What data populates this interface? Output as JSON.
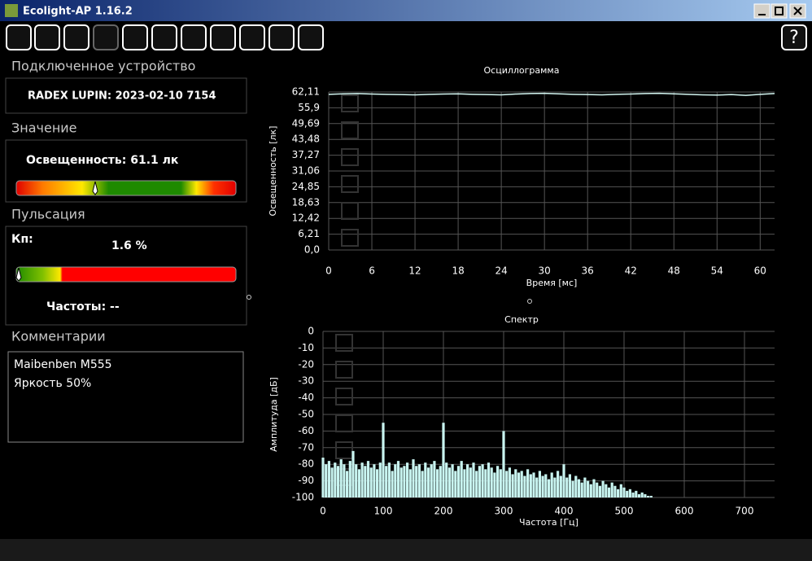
{
  "window": {
    "title": "Ecolight-AP 1.16.2"
  },
  "panel": {
    "device_header": "Подключенное устройство",
    "device": "RADEX LUPIN:  2023-02-10 7154",
    "value_header": "Значение",
    "value_text": "Освещенность:  61.1 лк",
    "pulse_header": "Пульсация",
    "kp_label": "Кп:",
    "kp_value": "1.6 %",
    "freq_text": "Частоты:  --",
    "comments_header": "Комментарии",
    "comments": [
      "Maibenben M555",
      "Яркость 50%"
    ]
  },
  "chart_data": [
    {
      "type": "line",
      "title": "Осциллограмма",
      "x_label": "Время [мс]",
      "y_label": "Освещенность [лк]",
      "x": [
        0,
        2,
        4,
        6,
        8,
        10,
        12,
        14,
        16,
        18,
        20,
        22,
        24,
        26,
        28,
        30,
        32,
        34,
        36,
        38,
        40,
        42,
        44,
        46,
        48,
        50,
        52,
        54,
        56,
        58,
        60,
        62
      ],
      "series": [
        {
          "color": "#d4f7f2",
          "values": [
            61.2,
            61.4,
            61.5,
            61.3,
            61.2,
            61.1,
            61.0,
            61.2,
            61.3,
            61.4,
            61.2,
            61.1,
            61.0,
            61.3,
            61.5,
            61.6,
            61.4,
            61.2,
            61.1,
            61.0,
            61.2,
            61.3,
            61.5,
            61.6,
            61.4,
            61.2,
            61.0,
            60.9,
            61.1,
            60.8,
            61.2,
            61.5
          ]
        }
      ],
      "xlim": [
        0,
        62
      ],
      "xticks": [
        0,
        6,
        12,
        18,
        24,
        30,
        36,
        42,
        48,
        54,
        60
      ],
      "ylim": [
        0,
        62.11
      ],
      "yticks": [
        {
          "value": 0,
          "label": "0,0"
        },
        {
          "value": 6.21,
          "label": "6,21"
        },
        {
          "value": 12.42,
          "label": "12,42"
        },
        {
          "value": 18.63,
          "label": "18,63"
        },
        {
          "value": 24.85,
          "label": "24,85"
        },
        {
          "value": 31.06,
          "label": "31,06"
        },
        {
          "value": 37.27,
          "label": "37,27"
        },
        {
          "value": 43.48,
          "label": "43,48"
        },
        {
          "value": 49.69,
          "label": "49,69"
        },
        {
          "value": 55.9,
          "label": "55,9"
        },
        {
          "value": 62.11,
          "label": "62,11"
        }
      ],
      "grid": true
    },
    {
      "type": "bar",
      "title": "Спектр",
      "x_label": "Частота [Гц]",
      "y_label": "Амплитуда [дБ]",
      "x": [
        0,
        5,
        10,
        15,
        20,
        25,
        30,
        35,
        40,
        45,
        50,
        55,
        60,
        65,
        70,
        75,
        80,
        85,
        90,
        95,
        100,
        105,
        110,
        115,
        120,
        125,
        130,
        135,
        140,
        145,
        150,
        155,
        160,
        165,
        170,
        175,
        180,
        185,
        190,
        195,
        200,
        205,
        210,
        215,
        220,
        225,
        230,
        235,
        240,
        245,
        250,
        255,
        260,
        265,
        270,
        275,
        280,
        285,
        290,
        295,
        300,
        305,
        310,
        315,
        320,
        325,
        330,
        335,
        340,
        345,
        350,
        355,
        360,
        365,
        370,
        375,
        380,
        385,
        390,
        395,
        400,
        405,
        410,
        415,
        420,
        425,
        430,
        435,
        440,
        445,
        450,
        455,
        460,
        465,
        470,
        475,
        480,
        485,
        490,
        495,
        500,
        505,
        510,
        515,
        520,
        525,
        530,
        535,
        540,
        545
      ],
      "series": [
        {
          "color": "#c8f4f0",
          "values": [
            -76,
            -80,
            -78,
            -82,
            -79,
            -81,
            -77,
            -80,
            -84,
            -78,
            -72,
            -80,
            -83,
            -79,
            -81,
            -78,
            -82,
            -80,
            -83,
            -79,
            -55,
            -81,
            -79,
            -84,
            -80,
            -78,
            -82,
            -81,
            -79,
            -83,
            -77,
            -81,
            -80,
            -84,
            -79,
            -82,
            -80,
            -78,
            -83,
            -81,
            -55,
            -79,
            -82,
            -80,
            -84,
            -81,
            -78,
            -83,
            -80,
            -82,
            -79,
            -84,
            -81,
            -80,
            -83,
            -79,
            -82,
            -85,
            -81,
            -83,
            -60,
            -84,
            -82,
            -86,
            -83,
            -85,
            -84,
            -87,
            -83,
            -86,
            -85,
            -88,
            -84,
            -87,
            -86,
            -89,
            -85,
            -88,
            -84,
            -87,
            -80,
            -88,
            -86,
            -90,
            -87,
            -89,
            -91,
            -88,
            -90,
            -92,
            -89,
            -91,
            -93,
            -90,
            -92,
            -94,
            -91,
            -93,
            -95,
            -92,
            -94,
            -96,
            -95,
            -97,
            -96,
            -98,
            -97,
            -98,
            -99,
            -99
          ]
        }
      ],
      "xlim": [
        0,
        750
      ],
      "xticks": [
        0,
        100,
        200,
        300,
        400,
        500,
        600,
        700
      ],
      "ylim": [
        -100,
        0
      ],
      "yticks": [
        0,
        -10,
        -20,
        -30,
        -40,
        -50,
        -60,
        -70,
        -80,
        -90,
        -100
      ],
      "grid": true
    }
  ]
}
